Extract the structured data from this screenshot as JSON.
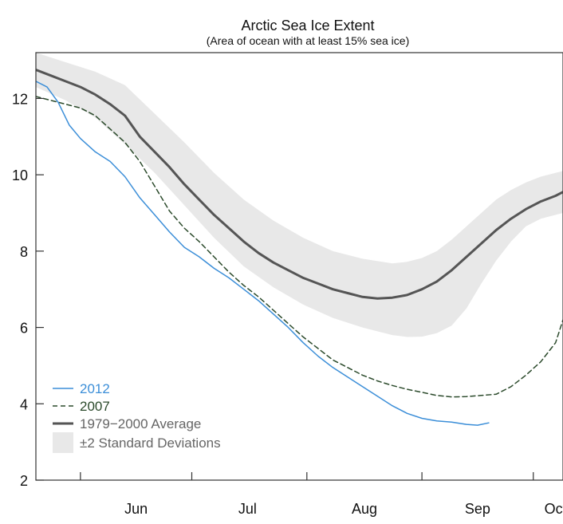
{
  "chart_data": {
    "type": "line",
    "title": "Arctic Sea Ice Extent",
    "subtitle": "(Area of ocean with at least 15% sea ice)",
    "xlabel": "",
    "ylabel": "",
    "ylim": [
      2,
      13.2
    ],
    "yticks": [
      2,
      4,
      6,
      8,
      10,
      12
    ],
    "ytick_labels": [
      "2",
      "4",
      "6",
      "8",
      "10",
      "12"
    ],
    "xlim": [
      0,
      142
    ],
    "x_unit": "days since May 20",
    "month_boundaries": [
      12,
      42,
      73,
      104,
      134
    ],
    "month_labels": [
      {
        "label": "Jun",
        "x": 27
      },
      {
        "label": "Jul",
        "x": 57
      },
      {
        "label": "Aug",
        "x": 88.5
      },
      {
        "label": "Sep",
        "x": 119
      },
      {
        "label": "Oct",
        "x": 140
      }
    ],
    "grid": false,
    "legend_position": "bottom-left",
    "series": [
      {
        "name": "2012",
        "label": "2012",
        "style": "solid",
        "color": "#3b8ed8",
        "x": [
          0,
          3,
          6,
          9,
          12,
          16,
          20,
          24,
          28,
          32,
          36,
          40,
          44,
          48,
          52,
          56,
          60,
          64,
          68,
          72,
          76,
          80,
          84,
          88,
          92,
          96,
          100,
          104,
          108,
          112,
          116,
          119,
          122
        ],
        "y": [
          12.45,
          12.3,
          11.9,
          11.3,
          10.95,
          10.6,
          10.35,
          9.95,
          9.4,
          8.95,
          8.5,
          8.1,
          7.85,
          7.55,
          7.3,
          7.0,
          6.7,
          6.35,
          6.0,
          5.6,
          5.25,
          4.95,
          4.7,
          4.45,
          4.2,
          3.95,
          3.75,
          3.62,
          3.55,
          3.52,
          3.46,
          3.44,
          3.5
        ]
      },
      {
        "name": "2007",
        "label": "2007",
        "style": "dashed",
        "color": "#2b4a2b",
        "x": [
          0,
          4,
          8,
          12,
          16,
          20,
          24,
          28,
          32,
          36,
          40,
          44,
          48,
          52,
          56,
          60,
          64,
          68,
          72,
          76,
          80,
          84,
          88,
          92,
          96,
          100,
          104,
          108,
          112,
          116,
          120,
          124,
          128,
          132,
          136,
          140,
          142
        ],
        "y": [
          12.05,
          11.95,
          11.85,
          11.75,
          11.55,
          11.2,
          10.85,
          10.35,
          9.7,
          9.05,
          8.6,
          8.25,
          7.85,
          7.45,
          7.1,
          6.8,
          6.45,
          6.1,
          5.75,
          5.45,
          5.15,
          4.95,
          4.75,
          4.6,
          4.48,
          4.38,
          4.3,
          4.22,
          4.18,
          4.19,
          4.22,
          4.25,
          4.45,
          4.75,
          5.1,
          5.6,
          6.2
        ]
      },
      {
        "name": "1979-2000 Average",
        "label": "1979−2000 Average",
        "style": "solid",
        "color": "#555555",
        "x": [
          0,
          4,
          8,
          12,
          16,
          20,
          24,
          28,
          32,
          36,
          40,
          44,
          48,
          52,
          56,
          60,
          64,
          68,
          72,
          76,
          80,
          84,
          88,
          92,
          96,
          100,
          104,
          108,
          112,
          116,
          120,
          124,
          128,
          132,
          136,
          140,
          142
        ],
        "y": [
          12.75,
          12.6,
          12.45,
          12.3,
          12.1,
          11.85,
          11.55,
          11.0,
          10.6,
          10.2,
          9.75,
          9.35,
          8.95,
          8.6,
          8.25,
          7.95,
          7.7,
          7.5,
          7.3,
          7.15,
          7.0,
          6.9,
          6.8,
          6.76,
          6.78,
          6.85,
          7.0,
          7.2,
          7.5,
          7.85,
          8.2,
          8.55,
          8.85,
          9.1,
          9.3,
          9.45,
          9.55
        ]
      }
    ],
    "band": {
      "name": "±2 Standard Deviations",
      "label": "±2 Standard Deviations",
      "color": "#e8e8e8",
      "x": [
        0,
        8,
        16,
        24,
        32,
        40,
        48,
        56,
        64,
        72,
        80,
        88,
        96,
        100,
        104,
        108,
        112,
        116,
        120,
        124,
        128,
        132,
        136,
        140,
        142
      ],
      "upper": [
        13.2,
        12.95,
        12.7,
        12.35,
        11.6,
        10.85,
        10.05,
        9.35,
        8.8,
        8.35,
        8.0,
        7.8,
        7.68,
        7.72,
        7.82,
        8.0,
        8.3,
        8.65,
        9.0,
        9.35,
        9.6,
        9.8,
        9.95,
        10.05,
        10.1
      ],
      "lower": [
        12.3,
        11.95,
        11.5,
        10.8,
        10.05,
        9.2,
        8.35,
        7.6,
        7.05,
        6.6,
        6.25,
        6.0,
        5.8,
        5.75,
        5.76,
        5.85,
        6.05,
        6.5,
        7.15,
        7.75,
        8.25,
        8.65,
        8.85,
        8.95,
        9.0
      ]
    }
  }
}
